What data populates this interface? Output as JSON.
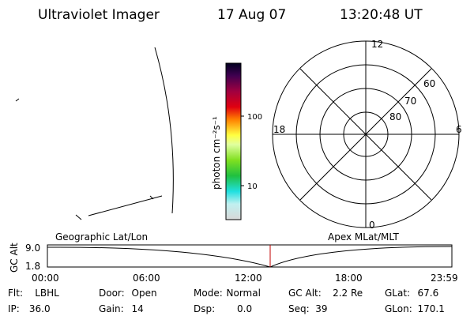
{
  "header": {
    "title": "Ultraviolet Imager",
    "date": "17 Aug 07",
    "time": "13:20:48 UT"
  },
  "colorbar": {
    "label": "photon cm⁻²s⁻¹",
    "ticks": [
      "100",
      "10"
    ]
  },
  "polar": {
    "mlt_labels": [
      "12",
      "18",
      "6",
      "0"
    ],
    "lat_labels": [
      "60",
      "70",
      "80"
    ]
  },
  "orbit": {
    "left_title": "Geographic Lat/Lon",
    "right_title": "Apex MLat/MLT",
    "axis_label": "GC Alt",
    "y_labels": [
      "9.0",
      "1.8"
    ],
    "time_labels": [
      "00:00",
      "06:00",
      "12:00",
      "18:00",
      "23:59"
    ]
  },
  "info": [
    [
      {
        "label": "Flt:",
        "value": "LBHL"
      },
      {
        "label": "Door:",
        "value": "Open"
      },
      {
        "label": "Mode:",
        "value": "Normal"
      },
      {
        "label": "GC Alt:",
        "value": "2.2 Re"
      },
      {
        "label": "GLat:",
        "value": "67.6"
      }
    ],
    [
      {
        "label": "IP:",
        "value": "36.0"
      },
      {
        "label": "Gain:",
        "value": "14"
      },
      {
        "label": "Dsp:",
        "value": "0.0"
      },
      {
        "label": "Seq:",
        "value": "39"
      },
      {
        "label": "GLon:",
        "value": "170.1"
      }
    ]
  ]
}
